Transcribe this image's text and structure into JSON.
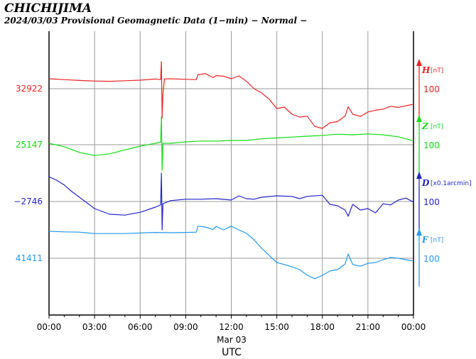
{
  "chart_data": {
    "type": "line",
    "title": "CHICHIJIMA",
    "subtitle": "2024/03/03  Provisional Geomagnetic Data (1−min)  − Normal −",
    "x_tick_labels": [
      "00:00",
      "03:00",
      "06:00",
      "09:00",
      "12:00",
      "15:00",
      "18:00",
      "21:00",
      "00:00"
    ],
    "x_date_label": "Mar 03",
    "xlabel": "UTC",
    "x_range_hours": [
      0,
      24
    ],
    "grid": true,
    "series": [
      {
        "name": "H",
        "unit": "[nT]",
        "color": "#ee2222",
        "base_value": "32922",
        "scale_label": "100",
        "points": [
          [
            0,
            35
          ],
          [
            1,
            32
          ],
          [
            2,
            29
          ],
          [
            3,
            27
          ],
          [
            4,
            26
          ],
          [
            5,
            28
          ],
          [
            6,
            30
          ],
          [
            7,
            34
          ],
          [
            7.35,
            32
          ],
          [
            7.4,
            96
          ],
          [
            7.45,
            -104
          ],
          [
            7.5,
            -20
          ],
          [
            7.6,
            34
          ],
          [
            8,
            35
          ],
          [
            9,
            33
          ],
          [
            9.7,
            32
          ],
          [
            9.8,
            49
          ],
          [
            10.3,
            53
          ],
          [
            10.8,
            39
          ],
          [
            11,
            46
          ],
          [
            11.5,
            44
          ],
          [
            12,
            35
          ],
          [
            12.5,
            45
          ],
          [
            13,
            26
          ],
          [
            13.5,
            0
          ],
          [
            14,
            -15
          ],
          [
            14.5,
            -37
          ],
          [
            15,
            -70
          ],
          [
            15.5,
            -65
          ],
          [
            16,
            -90
          ],
          [
            16.5,
            -100
          ],
          [
            17,
            -97
          ],
          [
            17.5,
            -133
          ],
          [
            18,
            -140
          ],
          [
            18.5,
            -120
          ],
          [
            19,
            -116
          ],
          [
            19.5,
            -96
          ],
          [
            19.7,
            -64
          ],
          [
            20,
            -90
          ],
          [
            20.5,
            -98
          ],
          [
            21,
            -82
          ],
          [
            21.5,
            -76
          ],
          [
            22,
            -72
          ],
          [
            22.5,
            -62
          ],
          [
            23,
            -66
          ],
          [
            23.5,
            -60
          ],
          [
            24,
            -55
          ]
        ]
      },
      {
        "name": "Z",
        "unit": "[nT]",
        "color": "#11dd11",
        "base_value": "25147",
        "scale_label": "100",
        "points": [
          [
            0,
            5
          ],
          [
            1,
            -7
          ],
          [
            2,
            -27
          ],
          [
            3,
            -38
          ],
          [
            4,
            -32
          ],
          [
            5,
            -18
          ],
          [
            6,
            -5
          ],
          [
            7,
            5
          ],
          [
            7.35,
            9
          ],
          [
            7.4,
            100
          ],
          [
            7.45,
            -90
          ],
          [
            7.5,
            5
          ],
          [
            8,
            5
          ],
          [
            9,
            10
          ],
          [
            10,
            13
          ],
          [
            11,
            13
          ],
          [
            12,
            15
          ],
          [
            13,
            15
          ],
          [
            14,
            21
          ],
          [
            15,
            24
          ],
          [
            16,
            27
          ],
          [
            17,
            30
          ],
          [
            18,
            33
          ],
          [
            19,
            37
          ],
          [
            20,
            35
          ],
          [
            21,
            38
          ],
          [
            22,
            35
          ],
          [
            23,
            28
          ],
          [
            24,
            14
          ]
        ]
      },
      {
        "name": "D",
        "unit": "[x0.1arcmin]",
        "color": "#2222cc",
        "base_value": "−2746",
        "scale_label": "100",
        "points": [
          [
            0,
            87
          ],
          [
            0.5,
            75
          ],
          [
            1,
            58
          ],
          [
            1.5,
            35
          ],
          [
            2,
            15
          ],
          [
            3,
            -25
          ],
          [
            4,
            -45
          ],
          [
            5,
            -48
          ],
          [
            6,
            -38
          ],
          [
            7,
            -20
          ],
          [
            7.35,
            -12
          ],
          [
            7.4,
            100
          ],
          [
            7.45,
            -100
          ],
          [
            7.5,
            -8
          ],
          [
            8,
            3
          ],
          [
            9,
            8
          ],
          [
            10,
            8
          ],
          [
            11,
            10
          ],
          [
            12,
            5
          ],
          [
            12.5,
            20
          ],
          [
            13,
            10
          ],
          [
            13.5,
            8
          ],
          [
            14,
            15
          ],
          [
            15,
            20
          ],
          [
            16,
            18
          ],
          [
            16.5,
            10
          ],
          [
            17,
            18
          ],
          [
            18,
            22
          ],
          [
            18.5,
            -10
          ],
          [
            19,
            -15
          ],
          [
            19.5,
            -30
          ],
          [
            19.7,
            -52
          ],
          [
            20,
            -10
          ],
          [
            20.5,
            -30
          ],
          [
            21,
            -25
          ],
          [
            21.5,
            -40
          ],
          [
            22,
            -8
          ],
          [
            22.5,
            -12
          ],
          [
            23,
            5
          ],
          [
            23.5,
            12
          ],
          [
            24,
            -2
          ]
        ]
      },
      {
        "name": "F",
        "unit": "[nT]",
        "color": "#2299ee",
        "base_value": "41411",
        "scale_label": "100",
        "points": [
          [
            0,
            95
          ],
          [
            1,
            93
          ],
          [
            2,
            92
          ],
          [
            3,
            87
          ],
          [
            4,
            87
          ],
          [
            5,
            87
          ],
          [
            6,
            89
          ],
          [
            7,
            91
          ],
          [
            8,
            90
          ],
          [
            9,
            91
          ],
          [
            9.7,
            92
          ],
          [
            9.8,
            113
          ],
          [
            10.3,
            110
          ],
          [
            10.8,
            101
          ],
          [
            11,
            112
          ],
          [
            11.5,
            100
          ],
          [
            12,
            113
          ],
          [
            12.5,
            100
          ],
          [
            13,
            88
          ],
          [
            13.5,
            65
          ],
          [
            14,
            35
          ],
          [
            14.5,
            10
          ],
          [
            15,
            -15
          ],
          [
            15.5,
            -22
          ],
          [
            16,
            -30
          ],
          [
            16.5,
            -40
          ],
          [
            17,
            -60
          ],
          [
            17.5,
            -72
          ],
          [
            18,
            -60
          ],
          [
            18.5,
            -45
          ],
          [
            19,
            -40
          ],
          [
            19.5,
            -20
          ],
          [
            19.7,
            15
          ],
          [
            20,
            -22
          ],
          [
            20.5,
            -28
          ],
          [
            21,
            -18
          ],
          [
            21.5,
            -15
          ],
          [
            22,
            -5
          ],
          [
            22.5,
            3
          ],
          [
            23,
            0
          ],
          [
            23.5,
            -5
          ],
          [
            24,
            -10
          ]
        ]
      }
    ]
  }
}
